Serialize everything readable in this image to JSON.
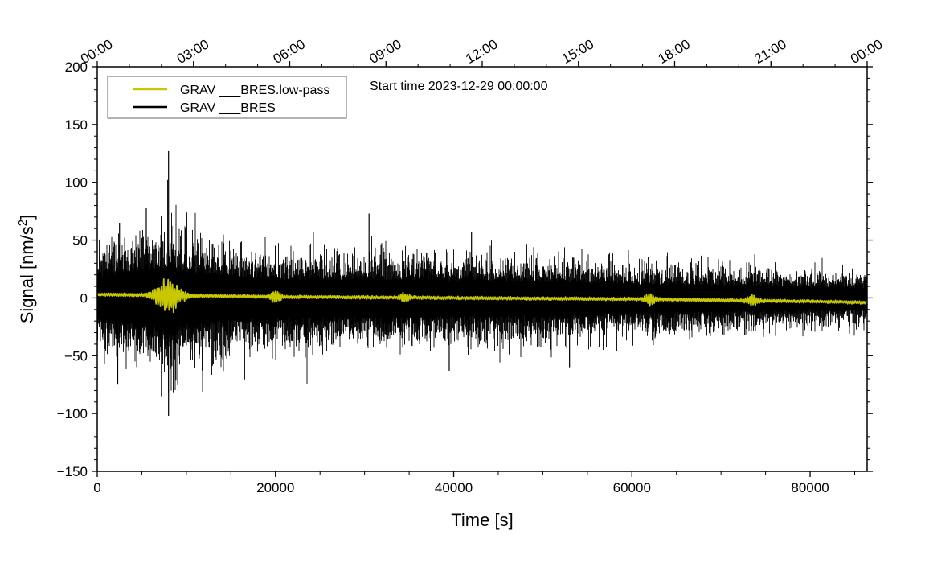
{
  "chart_data": {
    "type": "line",
    "title": "",
    "annotation": "Start time 2023-12-29 00:00:00",
    "xlabel": "Time [s]",
    "ylabel_main": "Signal [nm/s",
    "ylabel_sup": "2",
    "ylabel_end": "]",
    "xlim": [
      0,
      86400
    ],
    "ylim": [
      -150,
      200
    ],
    "x_ticks": [
      0,
      20000,
      40000,
      60000,
      80000
    ],
    "x_tick_labels": [
      "0",
      "20000",
      "40000",
      "60000",
      "80000"
    ],
    "y_ticks": [
      -150,
      -100,
      -50,
      0,
      50,
      100,
      150,
      200
    ],
    "y_tick_labels": [
      "−150",
      "−100",
      "−50",
      "0",
      "50",
      "100",
      "150",
      "200"
    ],
    "top_axis": {
      "tick_seconds": [
        0,
        10800,
        21600,
        32400,
        43200,
        54000,
        64800,
        75600,
        86400
      ],
      "tick_labels": [
        "00:00",
        "03:00",
        "06:00",
        "09:00",
        "12:00",
        "15:00",
        "18:00",
        "21:00",
        "00:00"
      ]
    },
    "legend": {
      "position": "top-left",
      "entries": [
        "GRAV ___BRES.low-pass",
        "GRAV ___BRES"
      ]
    },
    "series": [
      {
        "name": "GRAV ___BRES",
        "color": "#000000",
        "kind": "noise-envelope",
        "envelope_x": [
          0,
          3000,
          6000,
          8000,
          10000,
          15000,
          20000,
          30000,
          40000,
          50000,
          60000,
          70000,
          80000,
          86400
        ],
        "envelope_upper": [
          28,
          32,
          36,
          40,
          34,
          28,
          24,
          24,
          22,
          21,
          18,
          16,
          14,
          13
        ],
        "envelope_lower": [
          -26,
          -30,
          -35,
          -46,
          -34,
          -30,
          -26,
          -26,
          -24,
          -23,
          -20,
          -18,
          -16,
          -15
        ],
        "spikes": [
          {
            "x": 8000,
            "y": 127
          },
          {
            "x": 8000,
            "y": -102
          },
          {
            "x": 2500,
            "y": 65
          },
          {
            "x": 5500,
            "y": 78
          },
          {
            "x": 2300,
            "y": -75
          },
          {
            "x": 7200,
            "y": -85
          },
          {
            "x": 30500,
            "y": 73
          },
          {
            "x": 39500,
            "y": -63
          },
          {
            "x": 53000,
            "y": -60
          },
          {
            "x": 42000,
            "y": 57
          }
        ]
      },
      {
        "name": "GRAV ___BRES.low-pass",
        "color": "#c8c800",
        "kind": "smoothed",
        "baseline_x": [
          0,
          10000,
          20000,
          40000,
          60000,
          80000,
          86400
        ],
        "baseline_y": [
          3,
          2,
          1,
          0,
          -1,
          -3,
          -4
        ],
        "noise_amplitude": 1.5,
        "bursts": [
          {
            "x": 8000,
            "amplitude": 16,
            "width": 1500
          },
          {
            "x": 20000,
            "amplitude": 5,
            "width": 600
          },
          {
            "x": 34500,
            "amplitude": 4,
            "width": 600
          },
          {
            "x": 62000,
            "amplitude": 5,
            "width": 600
          },
          {
            "x": 73500,
            "amplitude": 5,
            "width": 600
          }
        ]
      }
    ]
  }
}
